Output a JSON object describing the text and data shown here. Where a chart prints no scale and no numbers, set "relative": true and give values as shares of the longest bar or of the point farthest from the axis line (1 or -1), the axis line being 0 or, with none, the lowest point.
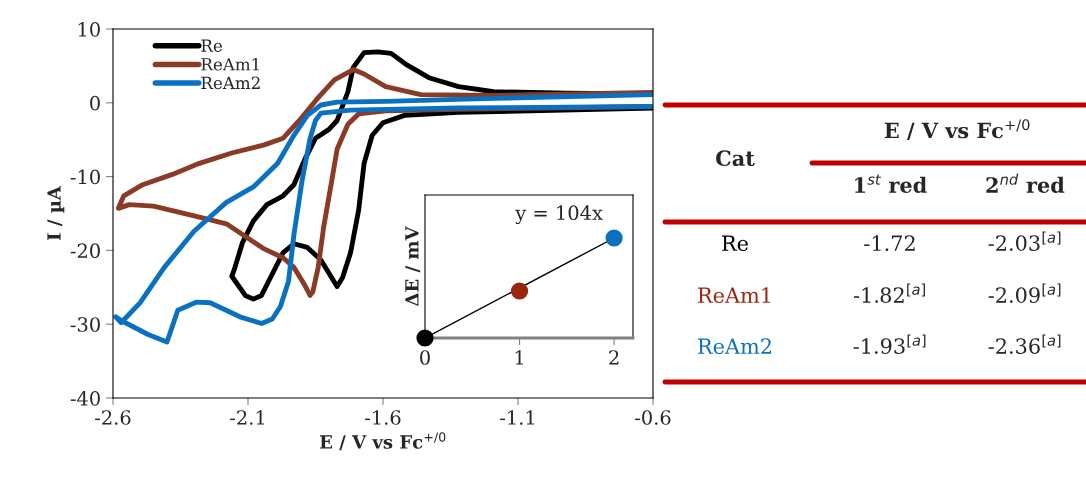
{
  "chart_data": [
    {
      "type": "line",
      "xlabel": "E / V vs Fc$^{+/0}$",
      "ylabel": "I / µA",
      "xlim": [
        -2.6,
        -0.6
      ],
      "xticks": [
        {
          "value": -2.6,
          "label": "-2.6"
        },
        {
          "value": -2.1,
          "label": "-2.1"
        },
        {
          "value": -1.6,
          "label": "-1.6"
        },
        {
          "value": -1.1,
          "label": "-1.1"
        },
        {
          "value": -0.6,
          "label": "-0.6"
        }
      ],
      "ylim": [
        -40,
        10
      ],
      "yticks": [
        {
          "value": -40,
          "label": "-40"
        },
        {
          "value": -30,
          "label": "-30"
        },
        {
          "value": -20,
          "label": "-20"
        },
        {
          "value": -10,
          "label": "-10"
        },
        0,
        10
      ],
      "grid": false,
      "legend": "top left",
      "line_style": "solid",
      "marker": "none",
      "series": [
        {
          "name": "Re",
          "color": "#000000",
          "x": [
            -0.6,
            -1.32,
            -1.52,
            -1.6,
            -1.64,
            -1.67,
            -1.69,
            -1.72,
            -1.75,
            -1.77,
            -1.79,
            -1.83,
            -1.88,
            -1.93,
            -1.97,
            -2.01,
            -2.05,
            -2.08,
            -2.11,
            -2.16,
            -2.15,
            -2.12,
            -2.08,
            -2.03,
            -1.97,
            -1.93,
            -1.89,
            -1.85,
            -1.8,
            -1.77,
            -1.73,
            -1.71,
            -1.67,
            -1.62,
            -1.57,
            -1.51,
            -1.43,
            -1.32,
            -1.19,
            -0.92,
            -0.6
          ],
          "values": [
            -0.7,
            -1.3,
            -1.7,
            -2.7,
            -4.4,
            -8.2,
            -14.5,
            -20.3,
            -23.7,
            -24.9,
            -23.7,
            -21.3,
            -19.6,
            -19.1,
            -20.3,
            -23.2,
            -26.1,
            -26.6,
            -26.1,
            -23.5,
            -22.5,
            -18.9,
            -16.0,
            -13.8,
            -12.6,
            -11.1,
            -7.7,
            -4.8,
            -3.6,
            -2.4,
            1.5,
            4.8,
            6.8,
            6.9,
            6.7,
            5.1,
            3.4,
            2.2,
            1.5,
            1.3,
            1.2
          ]
        },
        {
          "name": "ReAm1",
          "color": "#8b3a26",
          "x": [
            -0.6,
            -1.32,
            -1.59,
            -1.69,
            -1.73,
            -1.77,
            -1.79,
            -1.82,
            -1.84,
            -1.86,
            -1.87,
            -1.89,
            -1.93,
            -1.97,
            -2.04,
            -2.09,
            -2.18,
            -2.28,
            -2.45,
            -2.54,
            -2.58,
            -2.56,
            -2.49,
            -2.38,
            -2.28,
            -2.16,
            -2.04,
            -1.97,
            -1.91,
            -1.84,
            -1.78,
            -1.71,
            -1.67,
            -1.59,
            -1.46,
            -1.19,
            -0.6
          ],
          "values": [
            -0.5,
            -0.9,
            -1.1,
            -1.5,
            -2.9,
            -6.3,
            -10.6,
            -16.9,
            -22.3,
            -25.6,
            -26.1,
            -24.7,
            -22.3,
            -21.0,
            -19.8,
            -18.6,
            -16.4,
            -15.5,
            -14.0,
            -13.8,
            -14.3,
            -12.6,
            -11.1,
            -9.7,
            -8.2,
            -6.8,
            -5.7,
            -4.8,
            -2.4,
            0.7,
            3.1,
            4.5,
            3.9,
            2.2,
            1.1,
            1.0,
            1.4
          ]
        },
        {
          "name": "ReAm2",
          "color": "#0a70c2",
          "x": [
            -0.6,
            -1.32,
            -1.72,
            -1.83,
            -1.85,
            -1.87,
            -1.9,
            -1.93,
            -1.95,
            -1.98,
            -2.01,
            -2.05,
            -2.13,
            -2.24,
            -2.29,
            -2.36,
            -2.4,
            -2.47,
            -2.57,
            -2.59,
            -2.57,
            -2.5,
            -2.41,
            -2.3,
            -2.18,
            -2.08,
            -1.99,
            -1.93,
            -1.88,
            -1.83,
            -1.77,
            -1.59,
            -1.19,
            -0.6
          ],
          "values": [
            -0.5,
            -0.7,
            -1.0,
            -1.4,
            -2.4,
            -4.8,
            -10.6,
            -17.9,
            -24.2,
            -27.6,
            -29.3,
            -29.9,
            -29.0,
            -27.1,
            -27.0,
            -28.1,
            -32.4,
            -31.4,
            -29.5,
            -29.0,
            -29.8,
            -27.1,
            -22.3,
            -17.4,
            -13.5,
            -11.4,
            -8.2,
            -4.4,
            -1.7,
            -0.3,
            0.1,
            0.2,
            0.6,
            1.1
          ]
        }
      ]
    },
    {
      "type": "scatter",
      "relative": true,
      "ylabel": "ΔE / mV",
      "xlim": [
        0,
        2.2
      ],
      "xticks": [
        0,
        1,
        2
      ],
      "grid": false,
      "annotations": [
        {
          "text": "y = 104x",
          "x": 2,
          "y": 1
        }
      ],
      "series": [
        {
          "marker": "circle",
          "x": [
            0,
            1,
            2
          ],
          "values": [
            0,
            0.47,
            1
          ],
          "colors": [
            "#000000",
            "#9b2610",
            "#0a70c2"
          ]
        },
        {
          "type": "line",
          "color": "#000000",
          "x": [
            0,
            2
          ],
          "values": [
            0,
            1
          ]
        }
      ]
    },
    {
      "type": "other",
      "categories": [
        "Re",
        "ReAm1",
        "ReAm2"
      ],
      "colors": [
        "#000000",
        "#9b2610",
        "#0a70c2"
      ],
      "annotations": [
        "Cat",
        "E / V vs Fc$^{+/0}$",
        "1$^{st}$ red",
        "2$^{nd}$ red",
        "-1.72",
        "-2.03$^{[a]}$",
        "-1.82$^{[a]}$",
        "-2.09$^{[a]}$",
        "-1.93$^{[a]}$",
        "-2.36$^{[a]}$"
      ]
    }
  ]
}
